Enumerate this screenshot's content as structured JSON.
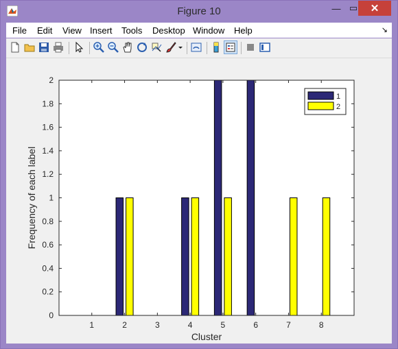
{
  "window": {
    "title": "Figure 10",
    "minimize_glyph": "—",
    "maximize_glyph": "▭",
    "close_glyph": "✕",
    "app_icon": "matlab-icon"
  },
  "menu": {
    "items": [
      "File",
      "Edit",
      "View",
      "Insert",
      "Tools",
      "Desktop",
      "Window",
      "Help"
    ],
    "corner_glyph": "↘"
  },
  "toolbar": {
    "buttons": [
      "new-figure-icon",
      "open-file-icon",
      "save-icon",
      "print-icon",
      "edit-plot-arrow-icon",
      "zoom-in-icon",
      "zoom-out-icon",
      "pan-hand-icon",
      "rotate-3d-icon",
      "data-cursor-icon",
      "brush-icon",
      "brush-dropdown-icon",
      "link-plot-icon",
      "insert-colorbar-icon",
      "insert-legend-icon",
      "hide-plot-tools-icon",
      "show-plot-tools-icon"
    ]
  },
  "colors": {
    "series1": "#2c2876",
    "series2": "#ffff00",
    "titlebar": "#9b86c7",
    "close_button": "#c6413a"
  },
  "chart_data": {
    "type": "bar",
    "categories": [
      "1",
      "2",
      "3",
      "4",
      "5",
      "6",
      "7",
      "8"
    ],
    "series": [
      {
        "name": "1",
        "values": [
          0,
          1,
          0,
          1,
          2,
          2,
          0,
          0
        ]
      },
      {
        "name": "2",
        "values": [
          0,
          1,
          0,
          1,
          1,
          0,
          1,
          1
        ]
      }
    ],
    "xlabel": "Cluster",
    "ylabel": "Frequency of each label",
    "ylim": [
      0,
      2
    ],
    "yticks": [
      "0",
      "0.2",
      "0.4",
      "0.6",
      "0.8",
      "1",
      "1.2",
      "1.4",
      "1.6",
      "1.8",
      "2"
    ],
    "legend": {
      "placement": "top-right",
      "entries": [
        "1",
        "2"
      ]
    },
    "grid": false
  }
}
